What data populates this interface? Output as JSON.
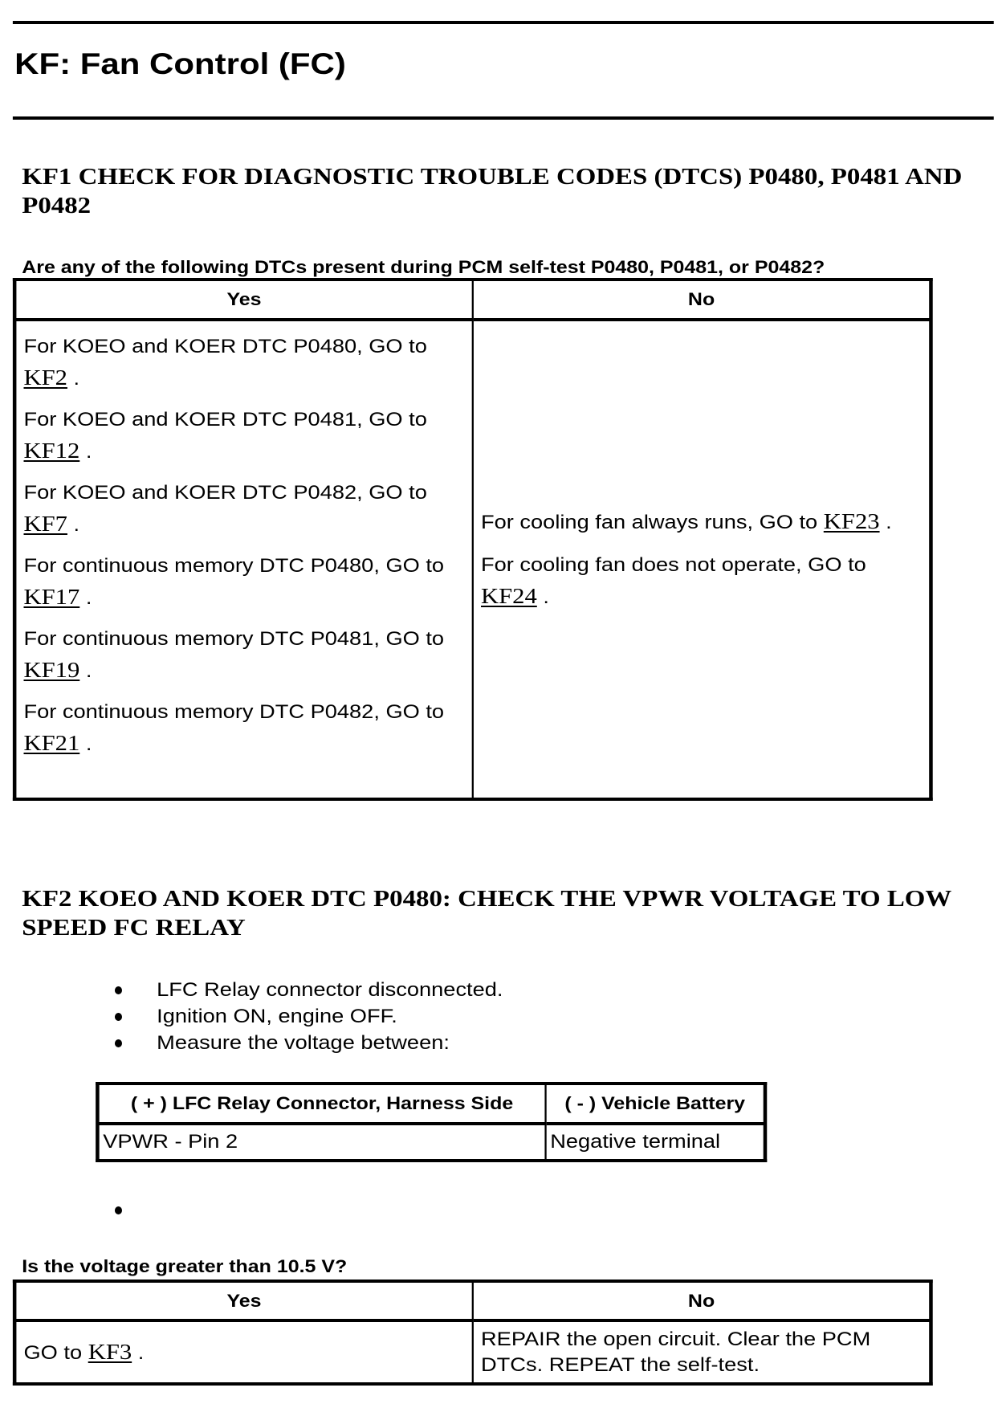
{
  "title": "KF: Fan Control (FC)",
  "kf1": {
    "heading": "KF1 CHECK FOR DIAGNOSTIC TROUBLE CODES (DTCS) P0480, P0481 AND P0482",
    "question": "Are any of the following DTCs present during PCM self-test P0480, P0481, or P0482?",
    "yes_header": "Yes",
    "no_header": "No",
    "yes_items": [
      {
        "text": "For KOEO and KOER DTC P0480, GO to",
        "link": "KF2"
      },
      {
        "text": "For KOEO and KOER DTC P0481, GO to",
        "link": "KF12"
      },
      {
        "text": "For KOEO and KOER DTC P0482, GO to",
        "link": "KF7"
      },
      {
        "text": "For continuous memory DTC P0480, GO to",
        "link": "KF17"
      },
      {
        "text": "For continuous memory DTC P0481, GO to",
        "link": "KF19"
      },
      {
        "text": "For continuous memory DTC P0482, GO to",
        "link": "KF21"
      }
    ],
    "no_items": [
      {
        "text": "For cooling fan always runs, GO to",
        "link": "KF23"
      },
      {
        "text": "For cooling fan does not operate, GO to",
        "link": "KF24"
      }
    ],
    "period": "."
  },
  "kf2": {
    "heading": "KF2 KOEO AND KOER DTC P0480: CHECK THE VPWR VOLTAGE TO LOW SPEED FC RELAY",
    "bullets": [
      "LFC Relay connector disconnected.",
      "Ignition ON, engine OFF.",
      "Measure the voltage between:"
    ],
    "measure_table": {
      "headers": [
        "( + ) LFC Relay Connector, Harness Side",
        "( - ) Vehicle Battery"
      ],
      "row": [
        "VPWR - Pin 2",
        "Negative terminal"
      ]
    },
    "question": "Is the voltage greater than 10.5 V?",
    "yes_header": "Yes",
    "no_header": "No",
    "yes_text": "GO to",
    "yes_link": "KF3",
    "no_text": "REPAIR the open circuit. Clear the PCM DTCs. REPEAT the self-test.",
    "period": "."
  }
}
